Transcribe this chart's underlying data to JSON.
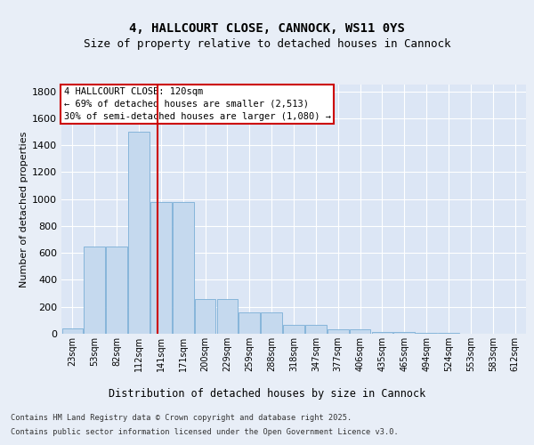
{
  "title": "4, HALLCOURT CLOSE, CANNOCK, WS11 0YS",
  "subtitle": "Size of property relative to detached houses in Cannock",
  "xlabel": "Distribution of detached houses by size in Cannock",
  "ylabel": "Number of detached properties",
  "bin_labels": [
    "23sqm",
    "53sqm",
    "82sqm",
    "112sqm",
    "141sqm",
    "171sqm",
    "200sqm",
    "229sqm",
    "259sqm",
    "288sqm",
    "318sqm",
    "347sqm",
    "377sqm",
    "406sqm",
    "435sqm",
    "465sqm",
    "494sqm",
    "524sqm",
    "553sqm",
    "583sqm",
    "612sqm"
  ],
  "bar_heights": [
    40,
    650,
    650,
    1500,
    975,
    975,
    260,
    260,
    160,
    160,
    65,
    65,
    30,
    30,
    15,
    15,
    8,
    8,
    3,
    3,
    3
  ],
  "bar_color": "#c5d9ee",
  "bar_edge_color": "#7aaed6",
  "vline_x": 3.85,
  "vline_color": "#cc0000",
  "annotation_text": "4 HALLCOURT CLOSE: 120sqm\n← 69% of detached houses are smaller (2,513)\n30% of semi-detached houses are larger (1,080) →",
  "annotation_box_color": "#cc0000",
  "annotation_box_fill": "#ffffff",
  "ylim": [
    0,
    1850
  ],
  "yticks": [
    0,
    200,
    400,
    600,
    800,
    1000,
    1200,
    1400,
    1600,
    1800
  ],
  "bg_color": "#e8eef7",
  "plot_bg_color": "#dce6f5",
  "grid_color": "#ffffff",
  "title_fontsize": 10,
  "subtitle_fontsize": 9,
  "footer_line1": "Contains HM Land Registry data © Crown copyright and database right 2025.",
  "footer_line2": "Contains public sector information licensed under the Open Government Licence v3.0."
}
